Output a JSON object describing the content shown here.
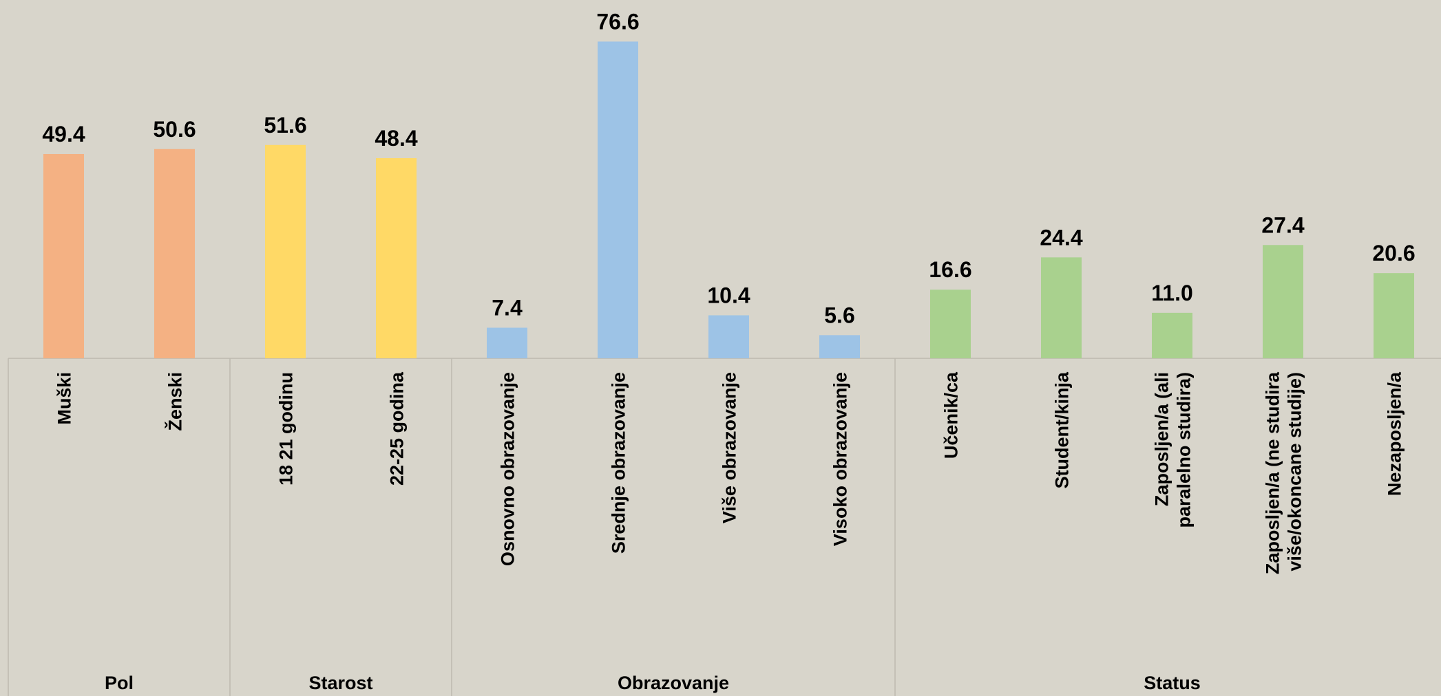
{
  "chart_data": {
    "type": "bar",
    "ylim": [
      0,
      80
    ],
    "groups": [
      {
        "name": "Pol",
        "color": "#f4b183",
        "categories": [
          "Muški",
          "Ženski"
        ],
        "values": [
          49.4,
          50.6
        ],
        "value_labels": [
          "49.4",
          "50.6"
        ]
      },
      {
        "name": "Starost",
        "color": "#ffd966",
        "categories": [
          "18 21 godinu",
          "22-25 godina"
        ],
        "values": [
          51.6,
          48.4
        ],
        "value_labels": [
          "51.6",
          "48.4"
        ]
      },
      {
        "name": "Obrazovanje",
        "color": "#9dc3e6",
        "categories": [
          "Osnovno obrazovanje",
          "Srednje obrazovanje",
          "Više obrazovanje",
          "Visoko obrazovanje"
        ],
        "values": [
          7.4,
          76.6,
          10.4,
          5.6
        ],
        "value_labels": [
          "7.4",
          "76.6",
          "10.4",
          "5.6"
        ]
      },
      {
        "name": "Status",
        "color": "#a9d18e",
        "categories": [
          "Učenik/ca",
          "Student/kinja",
          "Zaposljen/a (ali paralelno studira)",
          "Zaposljen/a (ne studira više/okoncane studije)",
          "Nezaposljen/a"
        ],
        "values": [
          16.6,
          24.4,
          11.0,
          27.4,
          20.6
        ],
        "value_labels": [
          "16.6",
          "24.4",
          "11.0",
          "27.4",
          "20.6"
        ]
      }
    ]
  }
}
